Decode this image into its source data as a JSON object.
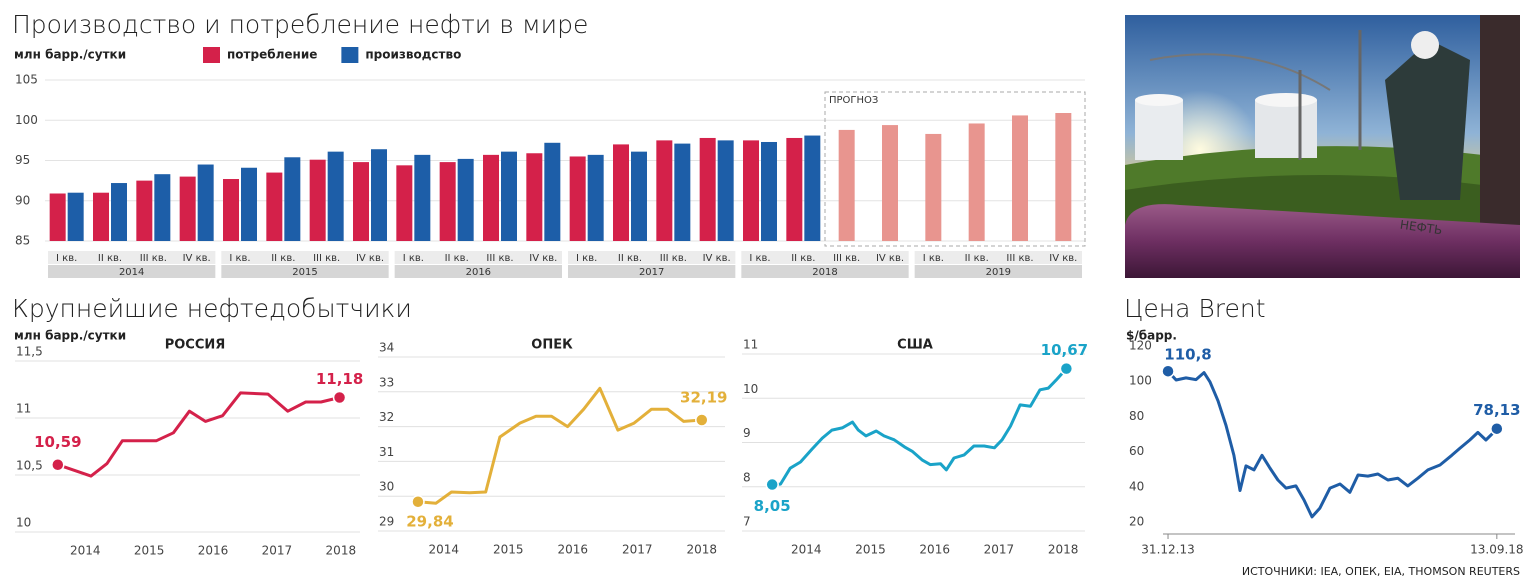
{
  "chart_data": [
    {
      "type": "bar",
      "title": "Производство и потребление нефти в мире",
      "y_label": "млн барр./сутки",
      "categories": [
        "I кв.",
        "II кв.",
        "III кв.",
        "IV кв.",
        "I кв.",
        "II кв.",
        "III кв.",
        "IV кв.",
        "I кв.",
        "II кв.",
        "III кв.",
        "IV кв.",
        "I кв.",
        "II кв.",
        "III кв.",
        "IV кв.",
        "I кв.",
        "II кв.",
        "III кв.",
        "IV кв.",
        "I кв.",
        "II кв.",
        "III кв.",
        "IV кв."
      ],
      "x_groups": [
        "2014",
        "2015",
        "2016",
        "2017",
        "2018",
        "2019"
      ],
      "series": [
        {
          "name": "потребление",
          "color": "#d4214a",
          "forecast_color": "#e8958f",
          "values": [
            90.9,
            91.0,
            92.5,
            93.0,
            92.7,
            93.5,
            95.1,
            94.8,
            94.4,
            94.8,
            95.7,
            95.9,
            95.5,
            97.0,
            97.5,
            97.8,
            97.5,
            97.8,
            98.8,
            99.4,
            98.3,
            99.6,
            100.6,
            100.9
          ]
        },
        {
          "name": "производство",
          "color": "#1d5ea8",
          "values": [
            91.0,
            92.2,
            93.3,
            94.5,
            94.1,
            95.4,
            96.1,
            96.4,
            95.7,
            95.2,
            96.1,
            97.2,
            95.7,
            96.1,
            97.1,
            97.5,
            97.3,
            98.1,
            null,
            null,
            null,
            null,
            null,
            null
          ]
        }
      ],
      "forecast_label": "ПРОГНОЗ",
      "ylim": [
        85,
        105
      ],
      "yticks": [
        85,
        90,
        95,
        100,
        105
      ],
      "grid": true
    },
    {
      "type": "line",
      "title": "РОССИЯ",
      "color": "#d4214a",
      "x": [
        2013.57,
        2014.09,
        2014.34,
        2014.58,
        2015.11,
        2015.38,
        2015.63,
        2015.88,
        2016.15,
        2016.43,
        2016.86,
        2017.17,
        2017.45,
        2017.69,
        2017.98
      ],
      "values": [
        10.59,
        10.49,
        10.6,
        10.8,
        10.8,
        10.87,
        11.06,
        10.97,
        11.02,
        11.22,
        11.21,
        11.06,
        11.14,
        11.14,
        11.18
      ],
      "value_labels": [
        "10,59",
        null,
        null,
        null,
        null,
        null,
        null,
        null,
        null,
        null,
        null,
        null,
        null,
        null,
        "11,18"
      ],
      "xlim": [
        2012.9,
        2018.3
      ],
      "xticks": [
        2014,
        2015,
        2016,
        2017,
        2018
      ],
      "ylim": [
        10,
        11.5
      ],
      "yticks": [
        10,
        {
          "value": 10.5,
          "label": "10,5"
        },
        11,
        {
          "value": 11.5,
          "label": "11,5"
        }
      ],
      "grid": true
    },
    {
      "type": "line",
      "title": "ОПЕК",
      "color": "#e3b03a",
      "x": [
        2013.6,
        2013.88,
        2014.12,
        2014.4,
        2014.65,
        2014.87,
        2015.18,
        2015.43,
        2015.67,
        2015.92,
        2016.17,
        2016.42,
        2016.7,
        2016.95,
        2017.22,
        2017.47,
        2017.72,
        2018.0
      ],
      "values": [
        29.84,
        29.8,
        30.12,
        30.1,
        30.12,
        31.7,
        32.1,
        32.3,
        32.3,
        32.0,
        32.5,
        33.1,
        31.9,
        32.1,
        32.5,
        32.5,
        32.15,
        32.19
      ],
      "value_labels": [
        "29,84",
        null,
        null,
        null,
        null,
        null,
        null,
        null,
        null,
        null,
        null,
        null,
        null,
        null,
        null,
        null,
        null,
        "32,19"
      ],
      "xlim": [
        2012.98,
        2018.36
      ],
      "xticks": [
        2014,
        2015,
        2016,
        2017,
        2018
      ],
      "ylim": [
        29,
        34
      ],
      "yticks": [
        29,
        30,
        31,
        32,
        33,
        34
      ],
      "grid": true
    },
    {
      "type": "line",
      "title": "США",
      "color": "#1aa3c8",
      "x": [
        2013.47,
        2013.6,
        2013.75,
        2013.91,
        2014.09,
        2014.25,
        2014.4,
        2014.56,
        2014.72,
        2014.81,
        2014.93,
        2015.09,
        2015.21,
        2015.37,
        2015.53,
        2015.65,
        2015.81,
        2015.93,
        2016.09,
        2016.18,
        2016.3,
        2016.46,
        2016.61,
        2016.77,
        2016.93,
        2017.05,
        2017.18,
        2017.33,
        2017.49,
        2017.64,
        2017.77,
        2017.89,
        2018.05
      ],
      "values": [
        8.05,
        8.06,
        8.42,
        8.56,
        8.85,
        9.1,
        9.28,
        9.33,
        9.46,
        9.28,
        9.15,
        9.26,
        9.15,
        9.06,
        8.9,
        8.8,
        8.6,
        8.5,
        8.52,
        8.38,
        8.65,
        8.72,
        8.92,
        8.92,
        8.88,
        9.06,
        9.37,
        9.85,
        9.82,
        10.19,
        10.23,
        10.41,
        10.67
      ],
      "value_labels": [
        "8,05",
        null,
        null,
        null,
        null,
        null,
        null,
        null,
        null,
        null,
        null,
        null,
        null,
        null,
        null,
        null,
        null,
        null,
        null,
        null,
        null,
        null,
        null,
        null,
        null,
        null,
        null,
        null,
        null,
        null,
        null,
        null,
        "10,67"
      ],
      "xlim": [
        2013.0,
        2018.34
      ],
      "xticks": [
        2014,
        2015,
        2016,
        2017,
        2018
      ],
      "ylim": [
        7,
        11
      ],
      "yticks": [
        7,
        8,
        9,
        10,
        11
      ],
      "grid": true
    },
    {
      "type": "line",
      "title": "Цена Brent",
      "y_label": "$/барр.",
      "color": "#1f5da6",
      "x": [
        "2013-12-31",
        "2014-02-11",
        "2014-04-04",
        "2014-05-26",
        "2014-07-07",
        "2014-08-07",
        "2014-09-18",
        "2014-10-30",
        "2014-12-10",
        "2015-01-11",
        "2015-02-11",
        "2015-03-25",
        "2015-05-06",
        "2015-06-16",
        "2015-07-28",
        "2015-09-08",
        "2015-10-30",
        "2015-12-11",
        "2016-01-22",
        "2016-03-03",
        "2016-04-25",
        "2016-06-16",
        "2016-08-07",
        "2016-09-18",
        "2016-11-09",
        "2016-12-31",
        "2017-02-21",
        "2017-04-14",
        "2017-06-05",
        "2017-07-28",
        "2017-09-18",
        "2017-11-20",
        "2018-01-21",
        "2018-03-04",
        "2018-04-25",
        "2018-06-06",
        "2018-07-18",
        "2018-08-18",
        "2018-09-13"
      ],
      "values": [
        110.8,
        105.8,
        107,
        106,
        110,
        104.7,
        94,
        80,
        63,
        43,
        57,
        54.7,
        63,
        55.8,
        49,
        44.4,
        45.6,
        37.6,
        28,
        33,
        44.4,
        46.7,
        42,
        51.8,
        51.2,
        52.4,
        49,
        50,
        45.6,
        50,
        54.7,
        57.5,
        63,
        67,
        71.7,
        76,
        71.7,
        75,
        78.13
      ],
      "value_labels": [
        "110,8",
        null,
        null,
        null,
        null,
        null,
        null,
        null,
        null,
        null,
        null,
        null,
        null,
        null,
        null,
        null,
        null,
        null,
        null,
        null,
        null,
        null,
        null,
        null,
        null,
        null,
        null,
        null,
        null,
        null,
        null,
        null,
        null,
        null,
        null,
        null,
        null,
        null,
        "78,13"
      ],
      "xlim": [
        "2013-06-05",
        "2019-01-12"
      ],
      "xticks": [
        {
          "value": "2013-12-31",
          "label": "31.12.13"
        },
        {
          "value": "2018-09-13",
          "label": "13.09.18"
        }
      ],
      "ylim": [
        20,
        120
      ],
      "yticks": [
        20,
        40,
        60,
        80,
        100,
        120
      ],
      "grid": false
    }
  ],
  "section_title": "Крупнейшие нефтедобытчики",
  "section_y_label": "млн барр./сутки",
  "source": "ИСТОЧНИКИ: IEA, ОПЕК, EIA, THOMSON REUTERS"
}
